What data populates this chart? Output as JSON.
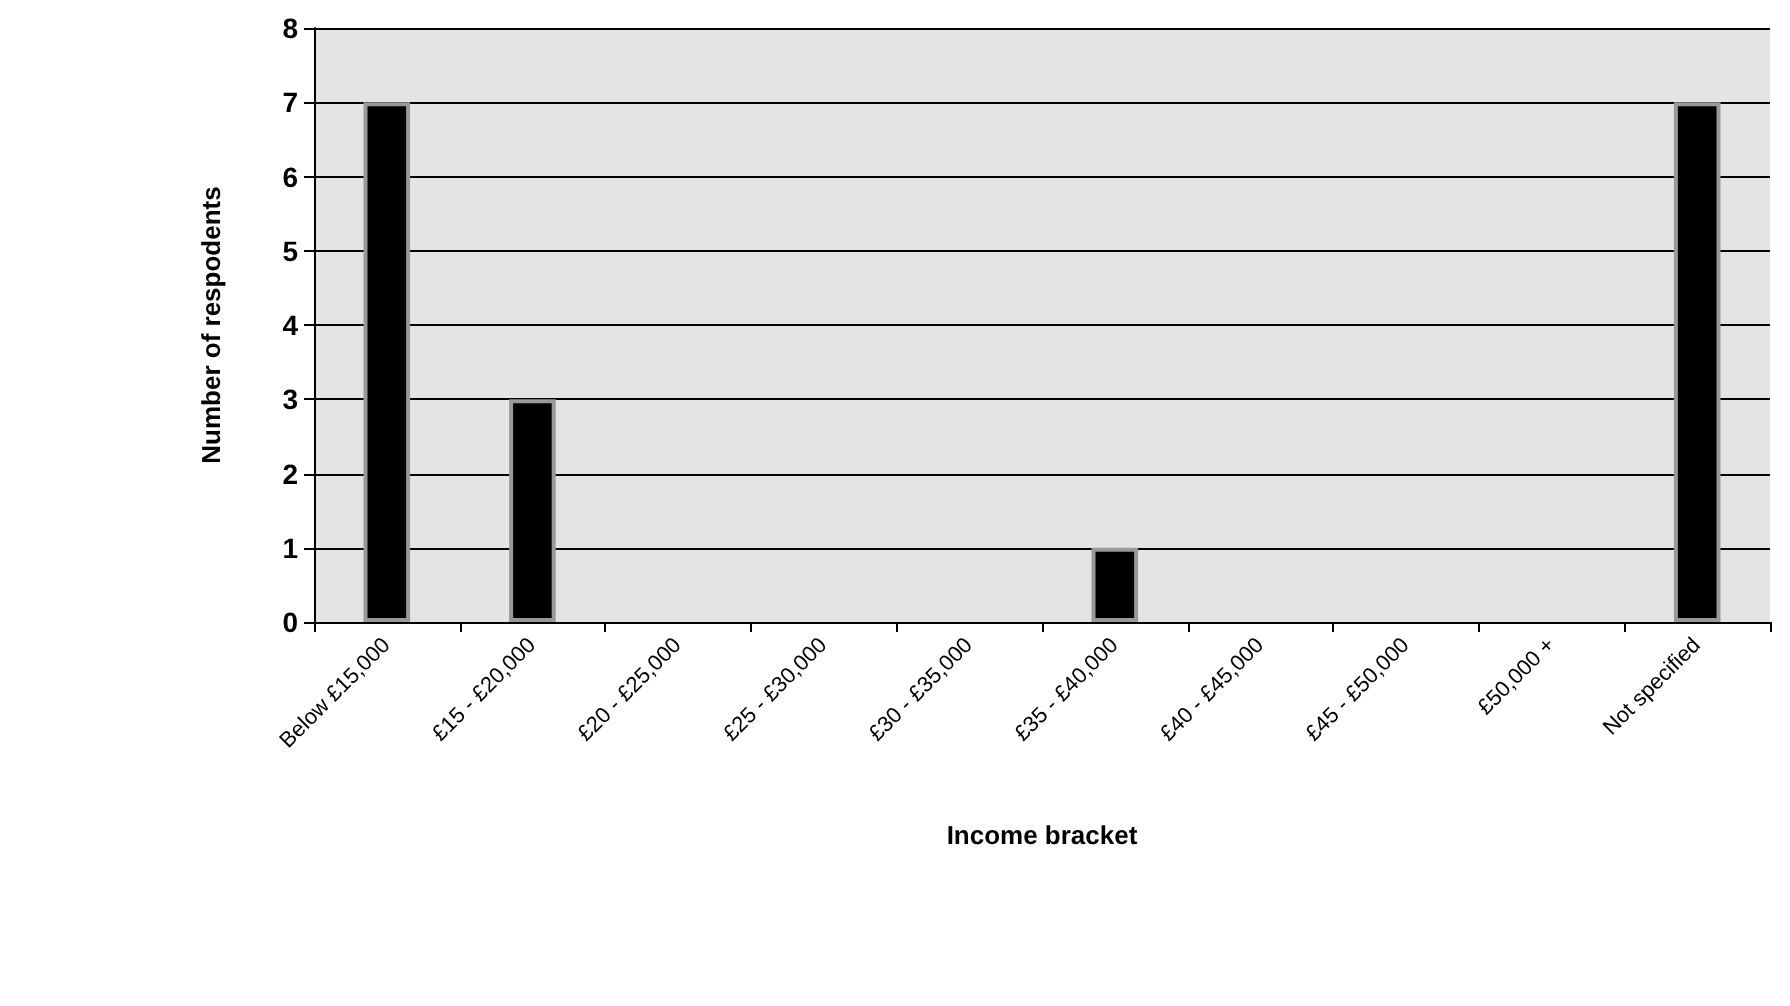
{
  "chart_data": {
    "type": "bar",
    "xlabel": "Income bracket",
    "ylabel": "Number of respodents",
    "categories": [
      "Below £15,000",
      "£15 - £20,000",
      "£20 - £25,000",
      "£25 - £30,000",
      "£30 - £35,000",
      "£35 - £40,000",
      "£40 - £45,000",
      "£45 - £50,000",
      "£50,000 +",
      "Not specified"
    ],
    "values": [
      7,
      3,
      0,
      0,
      0,
      1,
      0,
      0,
      0,
      7
    ],
    "color": "#000000",
    "ylim": [
      0,
      8
    ],
    "yticks": [
      0,
      1,
      2,
      3,
      4,
      5,
      6,
      7,
      8
    ],
    "grid": "y"
  }
}
